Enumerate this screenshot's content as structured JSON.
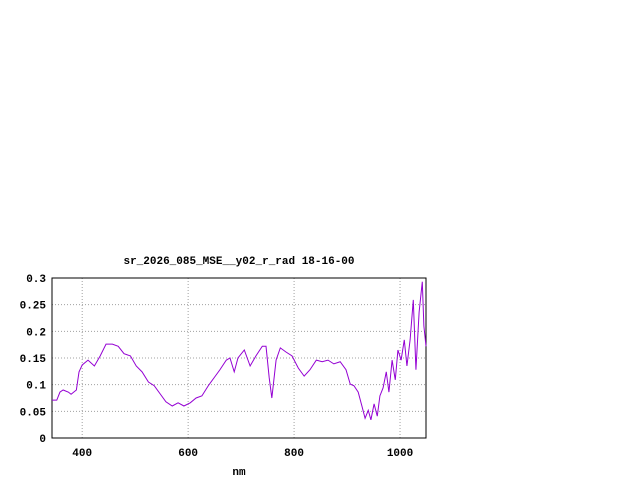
{
  "chart_data": {
    "type": "line",
    "title": "sr_2026_085_MSE__y02_r_rad 18-16-00",
    "x_label": "nm",
    "x": [
      343,
      352,
      358,
      364,
      374,
      379,
      389,
      394,
      400,
      411,
      423,
      434,
      445,
      457,
      468,
      479,
      491,
      502,
      513,
      525,
      536,
      547,
      558,
      570,
      581,
      592,
      604,
      615,
      626,
      638,
      649,
      660,
      672,
      679,
      687,
      694,
      706,
      717,
      728,
      740,
      747,
      753,
      758,
      766,
      774,
      785,
      796,
      808,
      819,
      830,
      842,
      853,
      864,
      875,
      887,
      898,
      906,
      913,
      921,
      928,
      934,
      940,
      945,
      951,
      957,
      962,
      968,
      974,
      979,
      985,
      991,
      996,
      1002,
      1008,
      1013,
      1019,
      1025,
      1030,
      1036,
      1042,
      1045,
      1049
    ],
    "series": [
      {
        "color": "#9400d3",
        "values": [
          0.071,
          0.071,
          0.086,
          0.09,
          0.086,
          0.082,
          0.09,
          0.124,
          0.137,
          0.146,
          0.135,
          0.154,
          0.176,
          0.176,
          0.172,
          0.158,
          0.154,
          0.135,
          0.124,
          0.105,
          0.098,
          0.083,
          0.068,
          0.06,
          0.066,
          0.06,
          0.066,
          0.075,
          0.079,
          0.098,
          0.113,
          0.128,
          0.146,
          0.15,
          0.124,
          0.15,
          0.165,
          0.135,
          0.154,
          0.172,
          0.172,
          0.113,
          0.075,
          0.146,
          0.169,
          0.161,
          0.154,
          0.131,
          0.116,
          0.128,
          0.146,
          0.143,
          0.146,
          0.139,
          0.143,
          0.128,
          0.101,
          0.098,
          0.086,
          0.06,
          0.037,
          0.052,
          0.034,
          0.064,
          0.041,
          0.079,
          0.094,
          0.124,
          0.086,
          0.146,
          0.109,
          0.165,
          0.146,
          0.184,
          0.135,
          0.184,
          0.259,
          0.128,
          0.236,
          0.293,
          0.21,
          0.172
        ]
      }
    ],
    "xlim": [
      343,
      1049
    ],
    "ylim": [
      0,
      0.3
    ],
    "xticks": [
      400,
      600,
      800,
      1000
    ],
    "yticks": [
      0,
      0.05,
      0.1,
      0.15,
      0.2,
      0.25,
      0.3
    ],
    "grid": true
  }
}
